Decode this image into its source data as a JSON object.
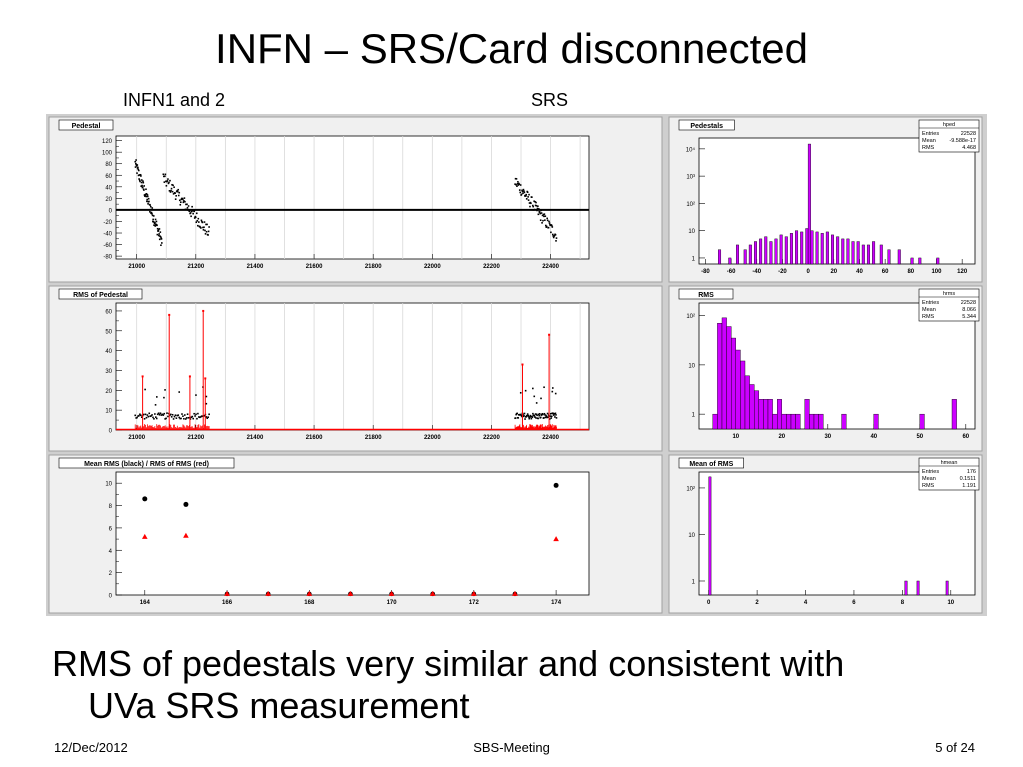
{
  "slide": {
    "title": "INFN – SRS/Card disconnected",
    "label_left": "INFN1 and 2",
    "label_right": "SRS",
    "bullet_line1": "RMS of pedestals very similar and consistent with",
    "bullet_line2": "UVa SRS measurement"
  },
  "footer": {
    "date": "12/Dec/2012",
    "event": "SBS-Meeting",
    "page": "5 of 24"
  },
  "colors": {
    "panel_bg": "#cfcfcf",
    "pad_bg": "#f0f0f0",
    "frame_bg": "#ffffff",
    "hist_fill": "#cc00ff",
    "rms_red": "#ff0000",
    "points_black": "#000000"
  },
  "chart_data": [
    {
      "type": "scatter",
      "title": "Pedestal",
      "xlim": [
        20930,
        22530
      ],
      "ylim": [
        -85,
        128
      ],
      "xticks": [
        21000,
        21200,
        21400,
        21600,
        21800,
        22000,
        22200,
        22400
      ],
      "xtick_labels": [
        "21000",
        "21200",
        "21400",
        "21600",
        "21800",
        "22000",
        "22200",
        "22400"
      ],
      "yticks": [
        -80,
        -60,
        -40,
        -20,
        0,
        20,
        40,
        60,
        80,
        100,
        120
      ],
      "ytick_labels": [
        "-80",
        "-60",
        "-40",
        "-20",
        "0",
        "20",
        "40",
        "60",
        "80",
        "100",
        "120"
      ],
      "grid_x": true,
      "baseline": 0,
      "segments": [
        {
          "x": [
            20995,
            21085
          ],
          "y": [
            80,
            -55
          ]
        },
        {
          "x": [
            21090,
            21245
          ],
          "y": [
            55,
            -40
          ]
        },
        {
          "x": [
            22280,
            22420
          ],
          "y": [
            50,
            -45
          ]
        }
      ]
    },
    {
      "type": "scatter",
      "title": "RMS of Pedestal",
      "xlim": [
        20930,
        22530
      ],
      "ylim": [
        0,
        64
      ],
      "xticks": [
        21000,
        21200,
        21400,
        21600,
        21800,
        22000,
        22200,
        22400
      ],
      "xtick_labels": [
        "21000",
        "21200",
        "21400",
        "21600",
        "21800",
        "22000",
        "22200",
        "22400"
      ],
      "yticks": [
        0,
        10,
        20,
        30,
        40,
        50,
        60
      ],
      "ytick_labels": [
        "0",
        "10",
        "20",
        "30",
        "40",
        "50",
        "60"
      ],
      "grid_x": true,
      "regions": [
        [
          20995,
          21245
        ],
        [
          22280,
          22420
        ]
      ],
      "typical_black": 7,
      "typical_red": 1,
      "red_spikes": [
        {
          "x": 21020,
          "y": 27
        },
        {
          "x": 21110,
          "y": 58
        },
        {
          "x": 21180,
          "y": 27
        },
        {
          "x": 21225,
          "y": 60
        },
        {
          "x": 21232,
          "y": 26
        },
        {
          "x": 22305,
          "y": 33
        },
        {
          "x": 22395,
          "y": 48
        }
      ]
    },
    {
      "type": "scatter",
      "title": "Mean RMS (black) / RMS of RMS (red)",
      "xlim": [
        163.3,
        174.8
      ],
      "ylim": [
        0,
        11
      ],
      "xticks": [
        164,
        166,
        168,
        170,
        172,
        174
      ],
      "xtick_labels": [
        "164",
        "166",
        "168",
        "170",
        "172",
        "174"
      ],
      "yticks": [
        0,
        2,
        4,
        6,
        8,
        10
      ],
      "ytick_labels": [
        "0",
        "2",
        "4",
        "6",
        "8",
        "10"
      ],
      "series": [
        {
          "name": "Mean RMS (black)",
          "marker": "circle",
          "x": [
            164,
            165,
            166,
            167,
            168,
            169,
            170,
            171,
            172,
            173,
            174
          ],
          "y": [
            8.6,
            8.1,
            0,
            0,
            0,
            0,
            0,
            0,
            0,
            0,
            9.8
          ]
        },
        {
          "name": "RMS of RMS (red)",
          "marker": "triangle",
          "x": [
            164,
            165,
            166,
            167,
            168,
            169,
            170,
            171,
            172,
            173,
            174
          ],
          "y": [
            5.2,
            5.3,
            0,
            0,
            0,
            0,
            0,
            0,
            0,
            0,
            5.0
          ]
        }
      ]
    },
    {
      "type": "bar",
      "title": "Pedestals",
      "stats_title": "hped",
      "stats": [
        {
          "label": "Entries",
          "value": "22528"
        },
        {
          "label": "Mean",
          "value": "-9.588e-17"
        },
        {
          "label": "RMS",
          "value": "4.468"
        }
      ],
      "log_y": true,
      "xlim": [
        -85,
        130
      ],
      "ylim": [
        0.6,
        25000
      ],
      "xticks": [
        -80,
        -60,
        -40,
        -20,
        0,
        20,
        40,
        60,
        80,
        100,
        120
      ],
      "xtick_labels": [
        "-80",
        "-60",
        "-40",
        "-20",
        "0",
        "20",
        "40",
        "60",
        "80",
        "100",
        "120"
      ],
      "yticks": [
        1,
        10,
        100,
        1000,
        10000
      ],
      "ytick_labels": [
        "1",
        "10",
        "10²",
        "10³",
        "10⁴"
      ],
      "bin_width": 2,
      "bins_x": [
        -70,
        -62,
        -56,
        -50,
        -46,
        -42,
        -38,
        -34,
        -30,
        -26,
        -22,
        -18,
        -14,
        -10,
        -6,
        -2,
        0,
        2,
        6,
        10,
        14,
        18,
        22,
        26,
        30,
        34,
        38,
        42,
        46,
        50,
        56,
        62,
        70,
        80,
        86,
        100
      ],
      "bins_y": [
        2,
        1,
        3,
        2,
        3,
        4,
        5,
        6,
        4,
        5,
        7,
        6,
        8,
        10,
        9,
        12,
        15000,
        10,
        9,
        8,
        9,
        7,
        6,
        5,
        5,
        4,
        4,
        3,
        3,
        4,
        3,
        2,
        2,
        1,
        1,
        1
      ]
    },
    {
      "type": "bar",
      "title": "RMS",
      "stats_title": "hrms",
      "stats": [
        {
          "label": "Entries",
          "value": "22528"
        },
        {
          "label": "Mean",
          "value": "8.066"
        },
        {
          "label": "RMS",
          "value": "5.344"
        }
      ],
      "log_y": true,
      "xlim": [
        2,
        62
      ],
      "ylim": [
        0.5,
        180
      ],
      "xticks": [
        10,
        20,
        30,
        40,
        50,
        60
      ],
      "xtick_labels": [
        "10",
        "20",
        "30",
        "40",
        "50",
        "60"
      ],
      "yticks": [
        1,
        10,
        100
      ],
      "ytick_labels": [
        "1",
        "10",
        "10²"
      ],
      "bin_width": 1,
      "bins_x": [
        5,
        6,
        7,
        8,
        9,
        10,
        11,
        12,
        13,
        14,
        15,
        16,
        17,
        18,
        19,
        20,
        21,
        22,
        23,
        25,
        26,
        27,
        28,
        33,
        40,
        50,
        57
      ],
      "bins_y": [
        1,
        70,
        90,
        60,
        35,
        20,
        12,
        6,
        4,
        3,
        2,
        2,
        2,
        1,
        2,
        1,
        1,
        1,
        1,
        2,
        1,
        1,
        1,
        1,
        1,
        1,
        2
      ]
    },
    {
      "type": "bar",
      "title": "Mean of RMS",
      "stats_title": "hmean",
      "stats": [
        {
          "label": "Entries",
          "value": "176"
        },
        {
          "label": "Mean",
          "value": "0.1511"
        },
        {
          "label": "RMS",
          "value": "1.191"
        }
      ],
      "log_y": true,
      "xlim": [
        -0.4,
        11
      ],
      "ylim": [
        0.5,
        220
      ],
      "xticks": [
        0,
        2,
        4,
        6,
        8,
        10
      ],
      "xtick_labels": [
        "0",
        "2",
        "4",
        "6",
        "8",
        "10"
      ],
      "yticks": [
        1,
        10,
        100
      ],
      "ytick_labels": [
        "1",
        "10",
        "10²"
      ],
      "bin_width": 0.1,
      "bins_x": [
        0,
        8.1,
        8.6,
        9.8
      ],
      "bins_y": [
        173,
        1,
        1,
        1
      ]
    }
  ]
}
